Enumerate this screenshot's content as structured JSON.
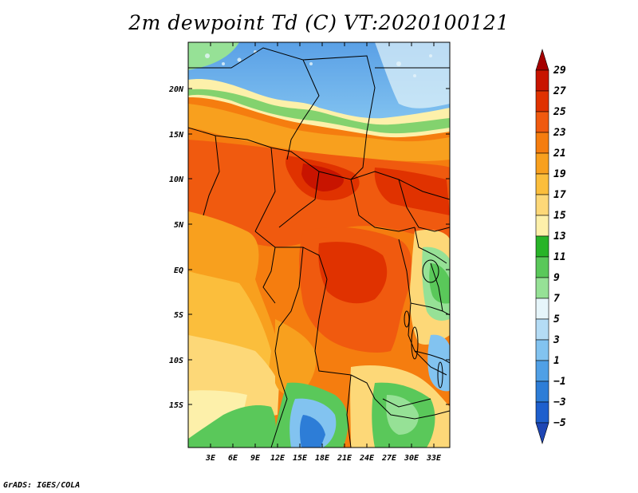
{
  "title": "2m dewpoint Td (C) VT:2020100121",
  "credit": "GrADS: IGES/COLA",
  "map": {
    "lon_labels": [
      "3E",
      "6E",
      "9E",
      "12E",
      "15E",
      "18E",
      "21E",
      "24E",
      "27E",
      "30E",
      "33E"
    ],
    "lat_labels": [
      "20N",
      "15N",
      "10N",
      "5N",
      "EQ",
      "5S",
      "10S",
      "15S"
    ]
  },
  "colorbar": {
    "levels": [
      "29",
      "27",
      "25",
      "23",
      "21",
      "19",
      "17",
      "15",
      "13",
      "11",
      "9",
      "7",
      "5",
      "3",
      "1",
      "−1",
      "−3",
      "−5"
    ],
    "colors": [
      "#a50000",
      "#c81400",
      "#e03200",
      "#f05a0f",
      "#f57d0f",
      "#f8a01e",
      "#fbbe3c",
      "#fdd878",
      "#fdf0aa",
      "#28b428",
      "#5ac85a",
      "#96e196",
      "#e6f5fa",
      "#b4dcf5",
      "#82c3f0",
      "#50a0e6",
      "#2d7dd7",
      "#1e5fcd",
      "#1e46b4"
    ]
  }
}
